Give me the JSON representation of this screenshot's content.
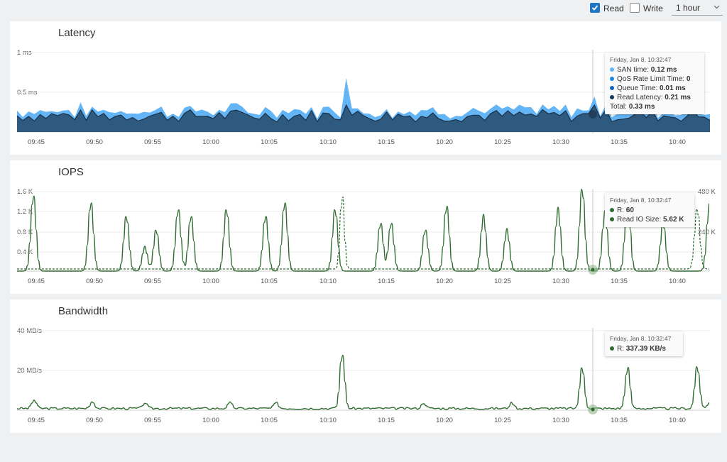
{
  "controls": {
    "read_label": "Read",
    "write_label": "Write",
    "read_checked": true,
    "write_checked": false,
    "range_value": "1 hour"
  },
  "x_ticks": [
    "09:45",
    "09:50",
    "09:55",
    "10:00",
    "10:05",
    "10:10",
    "10:15",
    "10:20",
    "10:25",
    "10:30",
    "10:35",
    "10:40"
  ],
  "panels": {
    "latency": {
      "title": "Latency",
      "y_ticks": [
        "1 ms",
        "0.5 ms"
      ],
      "tooltip": {
        "time": "Friday, Jan 8, 10:32:47",
        "rows": [
          {
            "label": "SAN time:",
            "value": "0.12 ms",
            "color": "#64b5f6"
          },
          {
            "label": "QoS Rate Limit Time:",
            "value": "0",
            "color": "#1e88e5"
          },
          {
            "label": "Queue Time:",
            "value": "0.01 ms",
            "color": "#1565c0"
          },
          {
            "label": "Read Latency:",
            "value": "0.21 ms",
            "color": "#14375a"
          }
        ],
        "total_label": "Total:",
        "total_value": "0.33 ms"
      }
    },
    "iops": {
      "title": "IOPS",
      "y_ticks_left": [
        "1.6 K",
        "1.2 K",
        "0.8 K",
        "0.4 K"
      ],
      "y_ticks_right": [
        "480 K",
        "240 K"
      ],
      "tooltip": {
        "time": "Friday, Jan 8, 10:32:47",
        "rows": [
          {
            "label": "R:",
            "value": "60",
            "color": "#2e6b2e"
          },
          {
            "label": "Read IO Size:",
            "value": "5.62 K",
            "color": "#2e6b2e"
          }
        ]
      }
    },
    "bandwidth": {
      "title": "Bandwidth",
      "y_ticks": [
        "40 MB/s",
        "20 MB/s"
      ],
      "tooltip": {
        "time": "Friday, Jan 8, 10:32:47",
        "rows": [
          {
            "label": "R:",
            "value": "337.39 KB/s",
            "color": "#2e6b2e"
          }
        ]
      }
    }
  },
  "colors": {
    "latency_fill_back": "#64b5f6",
    "latency_fill_front": "#2e5a80",
    "series_green": "#2e6b2e",
    "grid": "#e8e8e8"
  }
}
